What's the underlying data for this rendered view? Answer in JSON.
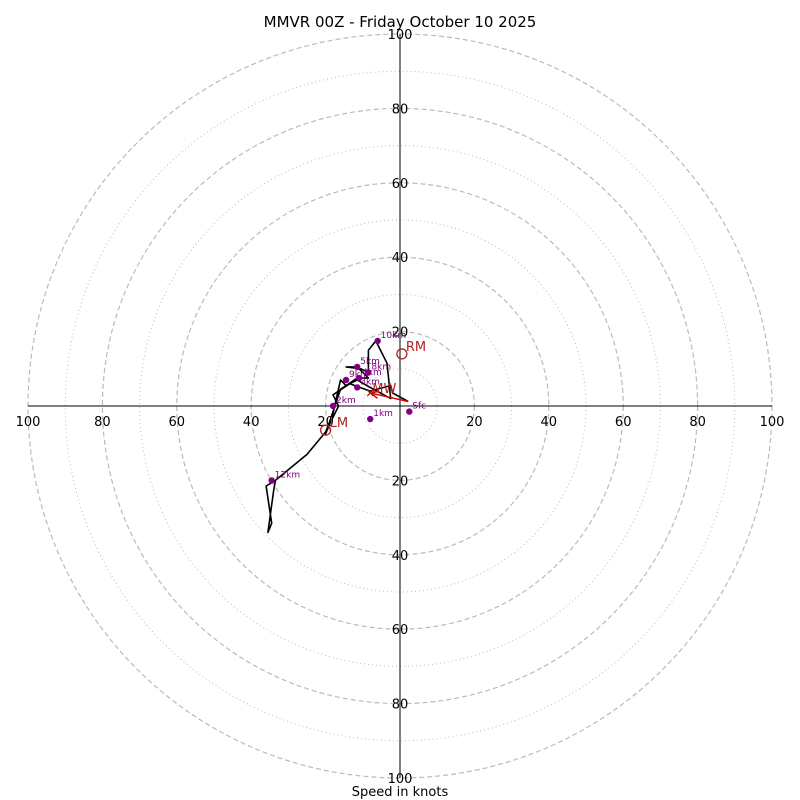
{
  "chart_data": {
    "type": "hodograph",
    "title": "MMVR 00Z - Friday October 10 2025",
    "xlabel": "Speed in knots",
    "speed_range": [
      0,
      100
    ],
    "major_rings": [
      20,
      40,
      60,
      80,
      100
    ],
    "minor_rings": [
      10,
      30,
      50,
      70,
      90
    ],
    "tick_labels": [
      "20",
      "40",
      "60",
      "80",
      "100"
    ],
    "colors": {
      "ring": "#bbbbbb",
      "axis": "#000000",
      "trace": "#000000",
      "marker": "#800080",
      "storm": "#b22222",
      "arrow": "#e00000"
    },
    "trace": [
      [
        2.2,
        1.2
      ],
      [
        -2.0,
        3.5
      ],
      [
        -2.5,
        5.5
      ],
      [
        -8.0,
        4.0
      ],
      [
        -13.5,
        6.0
      ],
      [
        -18.0,
        3.0
      ],
      [
        -16.5,
        0.0
      ],
      [
        -19.0,
        -5.0
      ],
      [
        -20.0,
        -7.5
      ],
      [
        -16.0,
        4.5
      ],
      [
        -11.5,
        7.5
      ],
      [
        -8.5,
        7.5
      ],
      [
        -11.5,
        10.5
      ],
      [
        -14.5,
        10.5
      ],
      [
        -10.5,
        10.0
      ],
      [
        -8.5,
        9.0
      ],
      [
        -8.5,
        15.0
      ],
      [
        -6.5,
        17.5
      ],
      [
        -3.5,
        11.5
      ],
      [
        -2.5,
        2.0
      ],
      [
        -8.0,
        5.0
      ],
      [
        -11.5,
        7.0
      ],
      [
        -14.5,
        5.5
      ],
      [
        -16.0,
        7.0
      ],
      [
        -18.0,
        -2.0
      ],
      [
        -20.0,
        -7.0
      ],
      [
        -25.0,
        -13.0
      ],
      [
        -33.5,
        -20.0
      ],
      [
        -36.0,
        -21.5
      ],
      [
        -34.5,
        -31.5
      ],
      [
        -35.5,
        -34.0
      ],
      [
        -34.0,
        -23.0
      ],
      [
        -33.5,
        -20.0
      ]
    ],
    "height_markers": [
      {
        "label": "Sfc",
        "u": 2.5,
        "v": -1.5
      },
      {
        "label": "1km",
        "u": -8.0,
        "v": -3.5
      },
      {
        "label": "2km",
        "u": -18.0,
        "v": 0.0
      },
      {
        "label": "3km",
        "u": -11.5,
        "v": 5.0
      },
      {
        "label": "4km",
        "u": -11.0,
        "v": 7.5
      },
      {
        "label": "5km",
        "u": -11.5,
        "v": 10.5
      },
      {
        "label": "8km",
        "u": -8.5,
        "v": 9.0
      },
      {
        "label": "9km",
        "u": -14.5,
        "v": 7.0
      },
      {
        "label": "10km",
        "u": -6.0,
        "v": 17.5
      },
      {
        "label": "12km",
        "u": -34.5,
        "v": -20.0
      }
    ],
    "storm_motion": [
      {
        "label": "RM",
        "u": 0.5,
        "v": 14.0
      },
      {
        "label": "LM",
        "u": -20.0,
        "v": -6.5
      }
    ],
    "mean_wind": {
      "label": "MW",
      "u": -8.0,
      "v": 3.5
    },
    "shear_arrow": {
      "from": [
        2.2,
        1.2
      ],
      "to": [
        -8.0,
        3.5
      ]
    }
  }
}
